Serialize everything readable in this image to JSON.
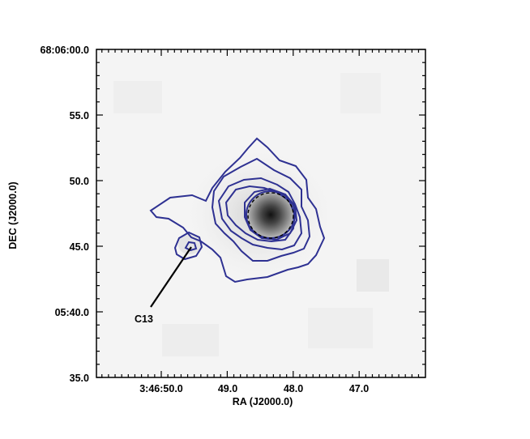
{
  "chart_data": {
    "type": "heatmap",
    "title": "",
    "xlabel": "RA (J2000.0)",
    "ylabel": "DEC (J2000.0)",
    "x_ticks": [
      "3:46:50.0",
      "49.0",
      "48.0",
      "47.0"
    ],
    "y_ticks": [
      "68:06:00.0",
      "55.0",
      "50.0",
      "45.0",
      "05:40.0",
      "35.0"
    ],
    "contour_color": "#2e3192",
    "colormap": "grayscale (white to black)",
    "grid": false,
    "legend": "none",
    "annotations": [
      {
        "text": "C13"
      }
    ]
  }
}
